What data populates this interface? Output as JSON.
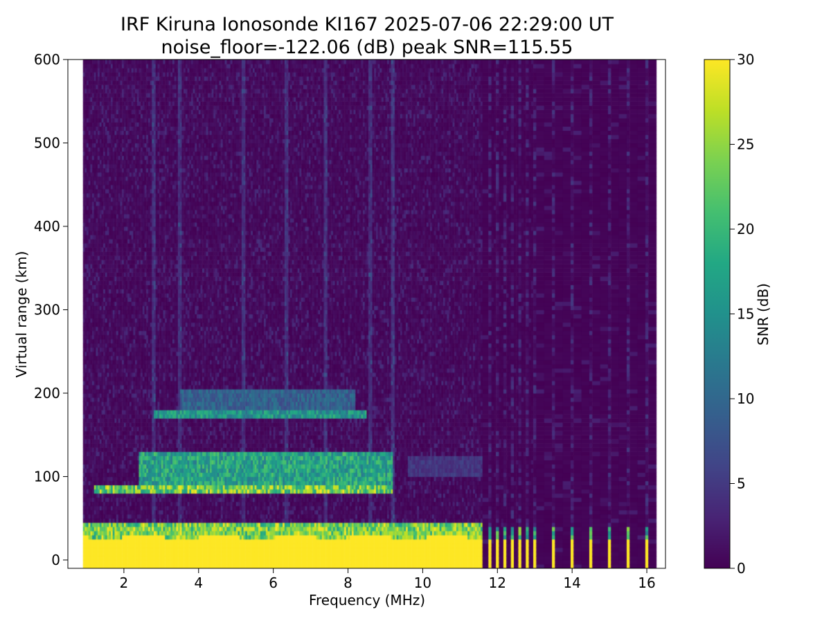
{
  "chart_data": {
    "type": "heatmap",
    "title": "IRF Kiruna Ionosonde KI167 2025-07-06 22:29:00  UT",
    "subtitle": "noise_floor=-122.06 (dB) peak SNR=115.55",
    "xlabel": "Frequency (MHz)",
    "ylabel": "Virtual range (km)",
    "xlim": [
      0.5,
      16.5
    ],
    "ylim": [
      -10,
      600
    ],
    "x_ticks": [
      2,
      4,
      6,
      8,
      10,
      12,
      14,
      16
    ],
    "y_ticks": [
      0,
      100,
      200,
      300,
      400,
      500,
      600
    ],
    "frequency_coverage_mhz": [
      0.9,
      16.5
    ],
    "continuous_sweep_upper_mhz": 11.6,
    "discrete_frequencies_mhz": [
      11.8,
      12.0,
      12.2,
      12.4,
      12.6,
      12.8,
      13.0,
      13.5,
      14.0,
      14.5,
      15.0,
      15.5,
      16.0
    ],
    "colorbar": {
      "label": "SNR (dB)",
      "range": [
        0,
        30
      ],
      "ticks": [
        0,
        5,
        10,
        15,
        20,
        25,
        30
      ],
      "colormap": "viridis"
    },
    "features": [
      {
        "layer": "E trace (strong)",
        "freq_mhz": [
          1.2,
          9.2
        ],
        "range_km": [
          80,
          90
        ],
        "snr_db": 30
      },
      {
        "layer": "E/Es diffuse band",
        "freq_mhz": [
          2.4,
          9.2
        ],
        "range_km": [
          90,
          130
        ],
        "snr_db": 22
      },
      {
        "layer": "Es at ~175 km",
        "freq_mhz": [
          2.8,
          8.5
        ],
        "range_km": [
          170,
          180
        ],
        "snr_db": 20
      },
      {
        "layer": "diffuse band above",
        "freq_mhz": [
          3.5,
          8.2
        ],
        "range_km": [
          180,
          205
        ],
        "snr_db": 12
      },
      {
        "layer": "weak trace",
        "freq_mhz": [
          9.6,
          11.6
        ],
        "range_km": [
          100,
          125
        ],
        "snr_db": 6
      },
      {
        "layer": "near-ground saturation",
        "freq_mhz": [
          0.9,
          11.6
        ],
        "range_km": [
          -10,
          45
        ],
        "snr_db": 30
      }
    ]
  }
}
